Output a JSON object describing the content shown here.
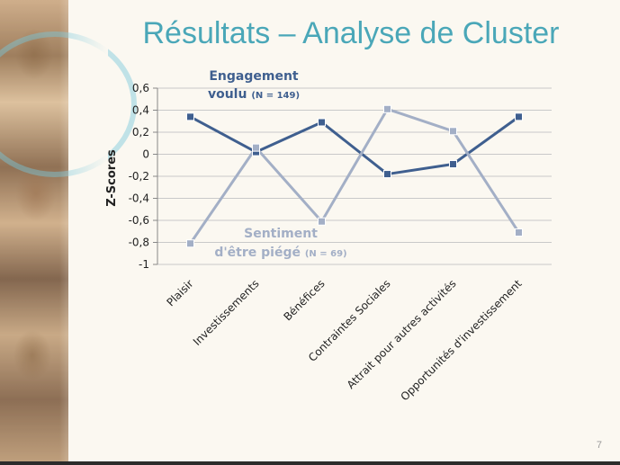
{
  "slide": {
    "title": "Résultats – Analyse de Cluster",
    "page_number": "7"
  },
  "chart_data": {
    "type": "line",
    "ylabel": "Z-Scores",
    "xlabel": "",
    "ylim": [
      -1,
      0.6
    ],
    "yticks": [
      "0,6",
      "0,4",
      "0,2",
      "0",
      "-0,2",
      "-0,4",
      "-0,6",
      "-0,8",
      "-1"
    ],
    "grid": true,
    "categories": [
      "Plaisir",
      "Investissements",
      "Bénéfices",
      "Contraintes Sociales",
      "Attrait pour autres activités",
      "Opportunités d'investissement"
    ],
    "series": [
      {
        "label_line1": "Engagement",
        "label_line2": "voulu",
        "n_text": "(N = 149)",
        "color": "#3f5f8f",
        "values": [
          0.34,
          0.02,
          0.29,
          -0.18,
          -0.09,
          0.34
        ]
      },
      {
        "label_line1": "Sentiment",
        "label_line2": "d'être piégé",
        "n_text": "(N = 69)",
        "color": "#a3afc6",
        "values": [
          -0.81,
          0.06,
          -0.61,
          0.41,
          0.21,
          -0.71
        ]
      }
    ]
  }
}
